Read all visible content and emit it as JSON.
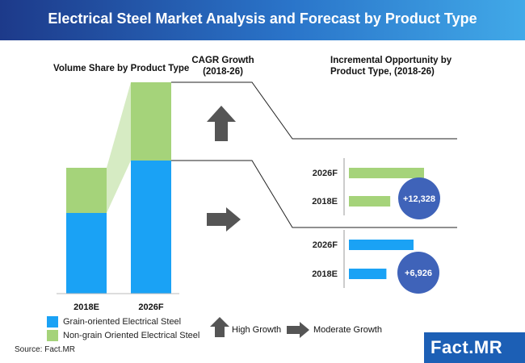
{
  "title": "Electrical Steel Market Analysis and Forecast by Product Type",
  "source": "Source: Fact.MR",
  "logo": {
    "part1": "Fact",
    "part2": ".MR"
  },
  "colors": {
    "grain": "#1aa2f5",
    "non_grain": "#a5d37a",
    "circle": "#3f63b9",
    "arrow": "#555555"
  },
  "sections": {
    "volume_share": "Volume Share by Product Type",
    "cagr_line1": "CAGR Growth",
    "cagr_line2": "(2018-26)",
    "incremental_line1": "Incremental Opportunity by",
    "incremental_line2": "Product Type, (2018-26)"
  },
  "legend": {
    "grain": "Grain-oriented Electrical Steel",
    "non_grain": "Non-grain Oriented Electrical Steel"
  },
  "growth_legend": {
    "high": "High Growth",
    "moderate": "Moderate Growth"
  },
  "chart_data": [
    {
      "type": "bar",
      "title": "Volume Share by Product Type",
      "stacked": true,
      "categories": [
        "2018E",
        "2026F"
      ],
      "series": [
        {
          "name": "Grain-oriented Electrical Steel",
          "values": [
            100,
            165
          ]
        },
        {
          "name": "Non-grain Oriented Electrical Steel",
          "values": [
            56,
            97
          ]
        }
      ],
      "note": "relative volume units, no numeric axis shown"
    },
    {
      "type": "bar",
      "orientation": "horizontal",
      "title": "Incremental Opportunity - Non-grain Oriented Electrical Steel",
      "categories": [
        "2026F",
        "2018E"
      ],
      "values": [
        100,
        55
      ],
      "annotation": "+12,328"
    },
    {
      "type": "bar",
      "orientation": "horizontal",
      "title": "Incremental Opportunity - Grain-oriented Electrical Steel",
      "categories": [
        "2026F",
        "2018E"
      ],
      "values": [
        100,
        58
      ],
      "annotation": "+6,926"
    }
  ]
}
